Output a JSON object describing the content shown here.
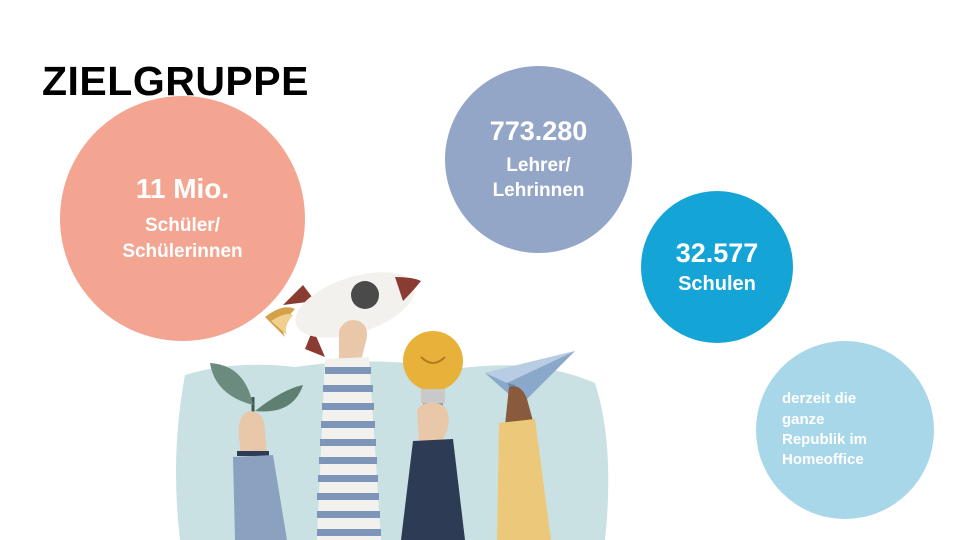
{
  "slide": {
    "title": "ZIELGRUPPE",
    "stats": [
      {
        "number": "11 Mio.",
        "label_lines": [
          "Schüler/",
          "Schülerinnen"
        ],
        "color": "#f4a592"
      },
      {
        "number": "773.280",
        "label_lines": [
          "Lehrer/",
          "Lehrinnen"
        ],
        "color": "#94a6c7"
      },
      {
        "number": "32.577",
        "label_lines": [
          "Schulen"
        ],
        "color": "#14a5d6"
      },
      {
        "number": "",
        "label_lines": [
          "derzeit die",
          "ganze",
          "Republik im",
          "Homeoffice"
        ],
        "color": "#a8d7e9"
      }
    ],
    "illustration": {
      "items": [
        "rocket-icon",
        "plant-icon",
        "lightbulb-icon",
        "paper-plane-icon"
      ],
      "colors": {
        "splash": "#bcd9dc",
        "rocket_fin": "#8a3b32",
        "flame": "#d4a04a",
        "bulb": "#e8b23a",
        "navy": "#2d3b55",
        "mustard": "#ecc97a"
      }
    }
  }
}
